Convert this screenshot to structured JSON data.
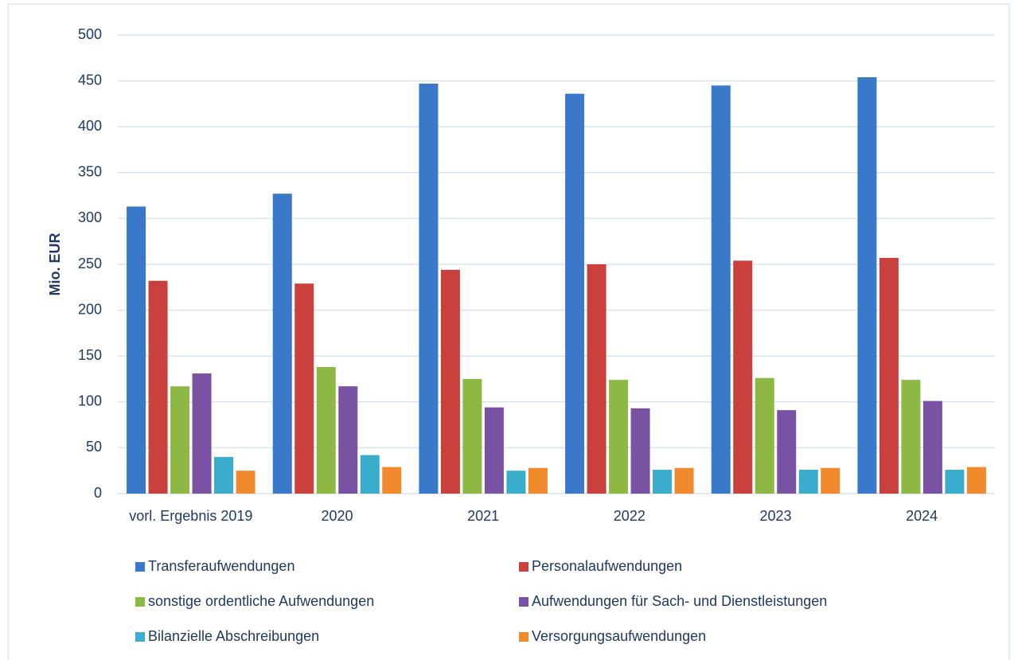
{
  "chart_data": {
    "type": "bar",
    "y_label": "Mio. EUR",
    "categories": [
      "vorl. Ergebnis 2019",
      "2020",
      "2021",
      "2022",
      "2023",
      "2024"
    ],
    "series": [
      {
        "name": "Transferaufwendungen",
        "color": "#3a78c9",
        "values": [
          313,
          327,
          447,
          436,
          445,
          454
        ]
      },
      {
        "name": "Personalaufwendungen",
        "color": "#c9403c",
        "values": [
          232,
          229,
          244,
          250,
          254,
          257
        ]
      },
      {
        "name": "sonstige ordentliche Aufwendungen",
        "color": "#8db843",
        "values": [
          117,
          138,
          125,
          124,
          126,
          124
        ]
      },
      {
        "name": "Aufwendungen für Sach- und Dienstleistungen",
        "color": "#7a52a3",
        "values": [
          131,
          117,
          94,
          93,
          91,
          101
        ]
      },
      {
        "name": "Bilanzielle Abschreibungen",
        "color": "#3aaccc",
        "values": [
          40,
          42,
          25,
          26,
          26,
          26
        ]
      },
      {
        "name": "Versorgungsaufwendungen",
        "color": "#f08a2c",
        "values": [
          25,
          29,
          28,
          28,
          28,
          29
        ]
      }
    ],
    "ylim": [
      0,
      500
    ],
    "yticks": [
      0,
      50,
      100,
      150,
      200,
      250,
      300,
      350,
      400,
      450,
      500
    ],
    "grid": true
  }
}
